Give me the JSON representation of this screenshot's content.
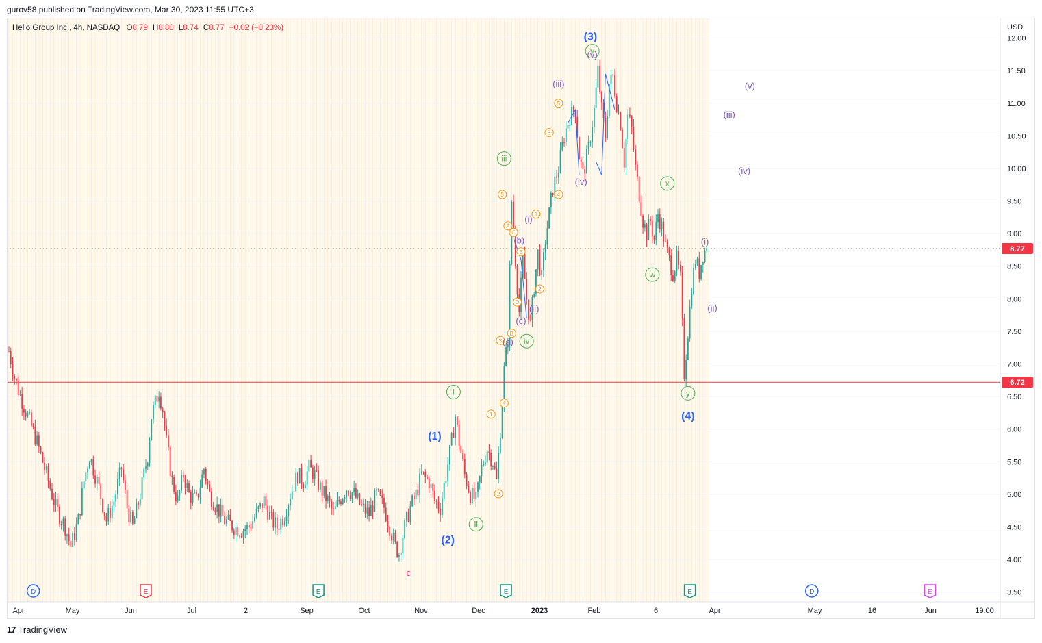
{
  "publisher": "gurov58 published on TradingView.com, Mar 30, 2023 11:55 UTC+3",
  "legend": {
    "symbol": "Hello Group Inc., 4h, NASDAQ",
    "open_label": "O",
    "open": "8.79",
    "high_label": "H",
    "high": "8.80",
    "low_label": "L",
    "low": "8.74",
    "close_label": "C",
    "close": "8.77",
    "change": "−0.02 (−0.23%)"
  },
  "footer_brand": "TradingView",
  "chart_data": {
    "type": "candlestick",
    "currency": "USD",
    "ylim": [
      3.35,
      12.3
    ],
    "y_ticks": [
      "12.00",
      "11.50",
      "11.00",
      "10.50",
      "10.00",
      "9.50",
      "9.00",
      "8.50",
      "8.00",
      "7.50",
      "7.00",
      "6.50",
      "6.00",
      "5.50",
      "5.00",
      "4.50",
      "4.00",
      "3.50"
    ],
    "x_ticks": [
      "Apr",
      "May",
      "Jun",
      "Jul",
      "2",
      "Sep",
      "Oct",
      "Nov",
      "Dec",
      "2023",
      "Feb",
      "6",
      "Apr",
      "May",
      "16",
      "Jun",
      "19:00"
    ],
    "x_ticks_bold": [
      "2023"
    ],
    "price_lines": [
      {
        "value": 8.77,
        "label": "8.77",
        "style": "dotted",
        "color": "#f23645"
      },
      {
        "value": 6.72,
        "label": "6.72",
        "style": "solid",
        "color": "#f23645"
      }
    ],
    "up_color": "#26a69a",
    "down_color": "#f23645",
    "series_path": [
      [
        0,
        7.2
      ],
      [
        3,
        6.8
      ],
      [
        5,
        6.6
      ],
      [
        10,
        6.2
      ],
      [
        15,
        5.8
      ],
      [
        20,
        5.3
      ],
      [
        25,
        4.8
      ],
      [
        30,
        4.5
      ],
      [
        33,
        4.2
      ],
      [
        37,
        4.6
      ],
      [
        40,
        5.2
      ],
      [
        43,
        5.6
      ],
      [
        48,
        5.1
      ],
      [
        52,
        4.6
      ],
      [
        56,
        4.9
      ],
      [
        60,
        5.4
      ],
      [
        63,
        4.8
      ],
      [
        66,
        4.5
      ],
      [
        70,
        5.0
      ],
      [
        74,
        5.6
      ],
      [
        76,
        6.2
      ],
      [
        78,
        6.4
      ],
      [
        80,
        6.6
      ],
      [
        82,
        6.3
      ],
      [
        84,
        5.8
      ],
      [
        87,
        5.2
      ],
      [
        90,
        4.9
      ],
      [
        93,
        5.3
      ],
      [
        96,
        5.0
      ],
      [
        100,
        4.9
      ],
      [
        104,
        5.4
      ],
      [
        107,
        5.0
      ],
      [
        111,
        4.8
      ],
      [
        115,
        4.6
      ],
      [
        120,
        4.5
      ],
      [
        124,
        4.45
      ],
      [
        128,
        4.5
      ],
      [
        132,
        4.7
      ],
      [
        136,
        4.9
      ],
      [
        140,
        4.6
      ],
      [
        143,
        4.5
      ],
      [
        147,
        4.7
      ],
      [
        150,
        5.0
      ],
      [
        154,
        5.3
      ],
      [
        157,
        5.2
      ],
      [
        160,
        5.4
      ],
      [
        163,
        5.3
      ],
      [
        166,
        5.1
      ],
      [
        170,
        4.9
      ],
      [
        173,
        4.7
      ],
      [
        176,
        4.9
      ],
      [
        180,
        5.1
      ],
      [
        184,
        5.0
      ],
      [
        188,
        4.8
      ],
      [
        192,
        4.7
      ],
      [
        196,
        5.0
      ],
      [
        200,
        4.8
      ],
      [
        203,
        4.5
      ],
      [
        206,
        4.2
      ],
      [
        208,
        4.1
      ],
      [
        211,
        4.5
      ],
      [
        214,
        4.8
      ],
      [
        217,
        5.0
      ],
      [
        220,
        5.3
      ],
      [
        224,
        5.2
      ],
      [
        227,
        4.9
      ],
      [
        230,
        4.8
      ],
      [
        233,
        5.3
      ],
      [
        236,
        5.8
      ],
      [
        238,
        6.2
      ],
      [
        240,
        5.8
      ],
      [
        243,
        5.3
      ],
      [
        246,
        5.0
      ],
      [
        249,
        4.9
      ],
      [
        252,
        5.4
      ],
      [
        255,
        5.7
      ],
      [
        258,
        5.5
      ],
      [
        260,
        5.2
      ],
      [
        262,
        6.0
      ],
      [
        264,
        6.9
      ],
      [
        266,
        7.4
      ],
      [
        268,
        9.5
      ],
      [
        270,
        8.6
      ],
      [
        272,
        7.8
      ],
      [
        274,
        8.6
      ],
      [
        276,
        8.0
      ],
      [
        278,
        7.6
      ],
      [
        280,
        8.2
      ],
      [
        282,
        8.7
      ],
      [
        284,
        8.3
      ],
      [
        286,
        8.9
      ],
      [
        288,
        9.3
      ],
      [
        290,
        9.7
      ],
      [
        293,
        10.0
      ],
      [
        296,
        10.5
      ],
      [
        299,
        10.8
      ],
      [
        302,
        10.9
      ],
      [
        304,
        10.2
      ],
      [
        306,
        9.9
      ],
      [
        309,
        10.3
      ],
      [
        312,
        10.9
      ],
      [
        314,
        11.5
      ],
      [
        316,
        10.9
      ],
      [
        318,
        10.5
      ],
      [
        320,
        11.3
      ],
      [
        322,
        11.4
      ],
      [
        324,
        11.0
      ],
      [
        326,
        10.7
      ],
      [
        328,
        10.1
      ],
      [
        330,
        10.8
      ],
      [
        332,
        10.6
      ],
      [
        334,
        10.0
      ],
      [
        336,
        9.6
      ],
      [
        338,
        9.2
      ],
      [
        340,
        9.0
      ],
      [
        342,
        9.2
      ],
      [
        344,
        8.9
      ],
      [
        346,
        9.3
      ],
      [
        348,
        9.1
      ],
      [
        350,
        8.8
      ],
      [
        352,
        8.6
      ],
      [
        354,
        8.4
      ],
      [
        356,
        8.6
      ],
      [
        358,
        8.3
      ],
      [
        360,
        6.85
      ],
      [
        362,
        7.5
      ],
      [
        364,
        8.2
      ],
      [
        366,
        8.6
      ],
      [
        368,
        8.4
      ],
      [
        370,
        8.7
      ],
      [
        372,
        8.77
      ]
    ],
    "candle_count": 373,
    "wave_labels": [
      {
        "text": "(3)",
        "price": 12.02,
        "t": 310,
        "color": "#2962ff",
        "size": "lg"
      },
      {
        "text": "v",
        "price": 11.8,
        "t": 311,
        "color": "#4caf50",
        "circled": true
      },
      {
        "text": "(v)",
        "price": 11.75,
        "t": 311,
        "color": "#7e57c2"
      },
      {
        "text": "(iii)",
        "price": 11.3,
        "t": 293,
        "color": "#7e57c2"
      },
      {
        "text": "5",
        "price": 11.0,
        "t": 293,
        "color": "#ff9800",
        "circled": true,
        "small": true
      },
      {
        "text": "3",
        "price": 10.55,
        "t": 288,
        "color": "#ff9800",
        "circled": true,
        "small": true
      },
      {
        "text": "iii",
        "price": 10.15,
        "t": 264,
        "color": "#4caf50",
        "circled": true
      },
      {
        "text": "(iv)",
        "price": 9.8,
        "t": 305,
        "color": "#7e57c2"
      },
      {
        "text": "4",
        "price": 9.6,
        "t": 293,
        "color": "#ff9800",
        "circled": true,
        "small": true
      },
      {
        "text": "5",
        "price": 9.6,
        "t": 263,
        "color": "#ff9800",
        "circled": true,
        "small": true
      },
      {
        "text": "1",
        "price": 9.3,
        "t": 281,
        "color": "#ff9800",
        "circled": true,
        "small": true
      },
      {
        "text": "(i)",
        "price": 9.23,
        "t": 277,
        "color": "#7e57c2"
      },
      {
        "text": "A",
        "price": 9.12,
        "t": 266,
        "color": "#ff9800",
        "circled": true,
        "small": true
      },
      {
        "text": "C",
        "price": 9.02,
        "t": 269,
        "color": "#ff9800",
        "circled": true,
        "small": true
      },
      {
        "text": "(b)",
        "price": 8.9,
        "t": 272,
        "color": "#7e57c2"
      },
      {
        "text": "E",
        "price": 8.72,
        "t": 273,
        "color": "#ff9800",
        "circled": true,
        "small": true
      },
      {
        "text": "2",
        "price": 8.15,
        "t": 283,
        "color": "#ff9800",
        "circled": true,
        "small": true
      },
      {
        "text": "D",
        "price": 7.95,
        "t": 271,
        "color": "#ff9800",
        "circled": true,
        "small": true
      },
      {
        "text": "(ii)",
        "price": 7.85,
        "t": 280,
        "color": "#7e57c2"
      },
      {
        "text": "(c)",
        "price": 7.67,
        "t": 273,
        "color": "#7e57c2"
      },
      {
        "text": "B",
        "price": 7.47,
        "t": 268,
        "color": "#ff9800",
        "circled": true,
        "small": true
      },
      {
        "text": "iv",
        "price": 7.35,
        "t": 276,
        "color": "#4caf50",
        "circled": true
      },
      {
        "text": "3",
        "price": 7.36,
        "t": 262,
        "color": "#ff9800",
        "circled": true,
        "small": true
      },
      {
        "text": "(a)",
        "price": 7.34,
        "t": 266,
        "color": "#7e57c2"
      },
      {
        "text": "i",
        "price": 6.57,
        "t": 237,
        "color": "#4caf50",
        "circled": true
      },
      {
        "text": "4",
        "price": 6.4,
        "t": 264,
        "color": "#ff9800",
        "circled": true,
        "small": true
      },
      {
        "text": "1",
        "price": 6.23,
        "t": 257,
        "color": "#ff9800",
        "circled": true,
        "small": true
      },
      {
        "text": "(1)",
        "price": 5.89,
        "t": 227,
        "color": "#2962ff",
        "size": "lg"
      },
      {
        "text": "2",
        "price": 5.01,
        "t": 261,
        "color": "#ff9800",
        "circled": true,
        "small": true
      },
      {
        "text": "ii",
        "price": 4.54,
        "t": 249,
        "color": "#4caf50",
        "circled": true
      },
      {
        "text": "(2)",
        "price": 4.3,
        "t": 234,
        "color": "#2962ff",
        "size": "lg"
      },
      {
        "text": "c",
        "price": 3.8,
        "t": 213,
        "color": "#e91e63"
      },
      {
        "text": "x",
        "price": 9.77,
        "t": 351,
        "color": "#4caf50",
        "circled": true
      },
      {
        "text": "w",
        "price": 8.37,
        "t": 343,
        "color": "#4caf50",
        "circled": true
      },
      {
        "text": "y",
        "price": 6.55,
        "t": 362,
        "color": "#4caf50",
        "circled": true
      },
      {
        "text": "(4)",
        "price": 6.2,
        "t": 362,
        "color": "#2962ff",
        "size": "lg"
      },
      {
        "text": "(i)",
        "price": 8.88,
        "t": 371,
        "color": "#7e57c2"
      },
      {
        "text": "(ii)",
        "price": 7.86,
        "t": 375,
        "color": "#7e57c2"
      },
      {
        "text": "(v)",
        "price": 11.27,
        "t": 395,
        "color": "#7e57c2"
      },
      {
        "text": "(iii)",
        "price": 10.83,
        "t": 384,
        "color": "#7e57c2"
      },
      {
        "text": "(iv)",
        "price": 9.97,
        "t": 392,
        "color": "#7e57c2"
      }
    ],
    "wave_lines": [
      [
        [
          298,
          10.7
        ],
        [
          302,
          10.9
        ],
        [
          304,
          9.9
        ]
      ],
      [
        [
          313,
          10.1
        ],
        [
          316,
          9.9
        ],
        [
          318,
          11.45
        ],
        [
          323,
          10.9
        ]
      ],
      [
        [
          270,
          8.85
        ],
        [
          273,
          8.6
        ],
        [
          276,
          7.7
        ],
        [
          274,
          8.3
        ]
      ]
    ],
    "events": [
      {
        "letter": "D",
        "t": 13,
        "color": "#2962ff",
        "shape": "circle"
      },
      {
        "letter": "E",
        "t": 73,
        "color": "#f23645",
        "shape": "flag"
      },
      {
        "letter": "E",
        "t": 165,
        "color": "#089981",
        "shape": "flag"
      },
      {
        "letter": "E",
        "t": 265,
        "color": "#089981",
        "shape": "flag"
      },
      {
        "letter": "E",
        "t": 363,
        "color": "#089981",
        "shape": "flag"
      },
      {
        "letter": "D",
        "t": 428,
        "color": "#2962ff",
        "shape": "circle"
      },
      {
        "letter": "E",
        "t": 491,
        "color": "#e040fb",
        "shape": "flag"
      }
    ]
  }
}
